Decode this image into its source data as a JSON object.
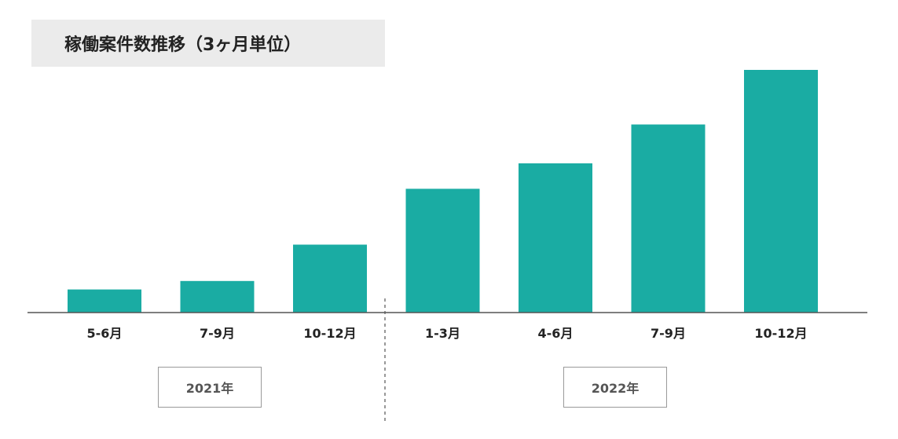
{
  "title": "稼働案件数推移（3ヶ月単位）",
  "chart_data": {
    "type": "bar",
    "title": "稼働案件数推移（3ヶ月単位）",
    "categories": [
      "5-6月",
      "7-9月",
      "10-12月",
      "1-3月",
      "4-6月",
      "7-9月",
      "10-12月"
    ],
    "values": [
      9.5,
      13,
      28,
      51,
      61.5,
      77.5,
      100
    ],
    "ylim": [
      0,
      100
    ],
    "year_groups": [
      {
        "label": "2021年",
        "categories": [
          "5-6月",
          "7-9月",
          "10-12月"
        ]
      },
      {
        "label": "2022年",
        "categories": [
          "1-3月",
          "4-6月",
          "7-9月",
          "10-12月"
        ]
      }
    ],
    "grid": false,
    "legend": "none",
    "colors": {
      "bar": "#1aaca3",
      "axis": "#555555",
      "divider": "#555555"
    }
  }
}
